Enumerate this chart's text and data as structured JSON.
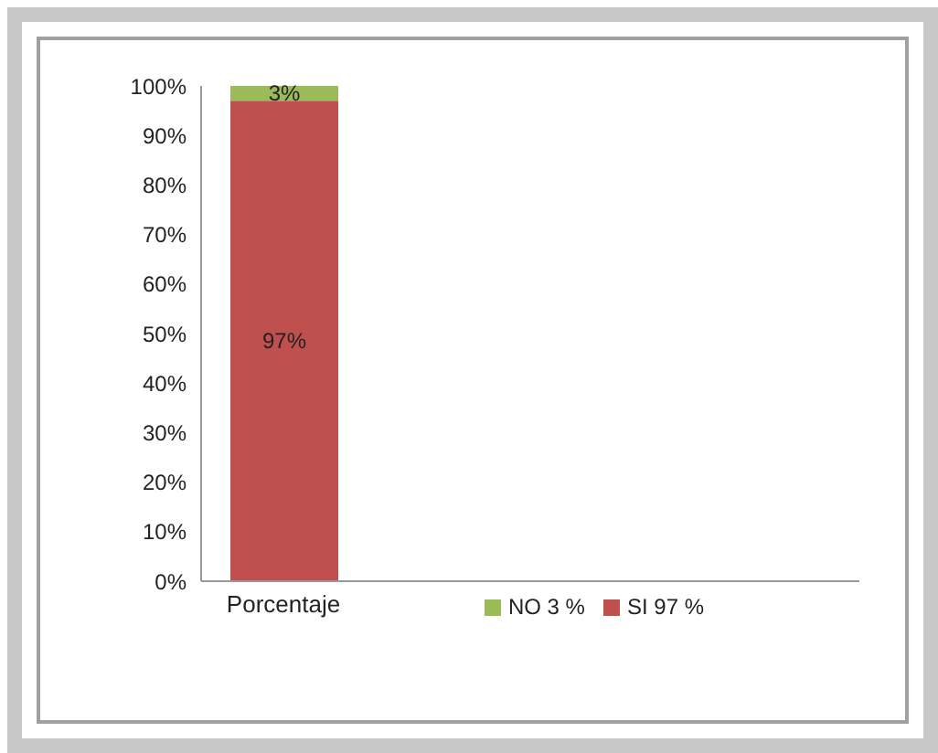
{
  "chart_data": {
    "type": "bar",
    "stacked": true,
    "categories": [
      "Porcentaje",
      null,
      null,
      null
    ],
    "series": [
      {
        "name": "SI 97 %",
        "color": "#c0504d",
        "values": [
          97,
          null,
          null,
          null
        ],
        "value_labels": [
          "97%",
          null,
          null,
          null
        ]
      },
      {
        "name": "NO 3 %",
        "color": "#9bbb59",
        "values": [
          3,
          null,
          null,
          null
        ],
        "value_labels": [
          "3%",
          null,
          null,
          null
        ]
      }
    ],
    "ylim": [
      0,
      100
    ],
    "yticks": [
      {
        "value": 0,
        "label": "0%"
      },
      {
        "value": 10,
        "label": "10%"
      },
      {
        "value": 20,
        "label": "20%"
      },
      {
        "value": 30,
        "label": "30%"
      },
      {
        "value": 40,
        "label": "40%"
      },
      {
        "value": 50,
        "label": "50%"
      },
      {
        "value": 60,
        "label": "60%"
      },
      {
        "value": 70,
        "label": "70%"
      },
      {
        "value": 80,
        "label": "80%"
      },
      {
        "value": 90,
        "label": "90%"
      },
      {
        "value": 100,
        "label": "100%"
      }
    ],
    "grid": false,
    "legend": "bottom"
  }
}
